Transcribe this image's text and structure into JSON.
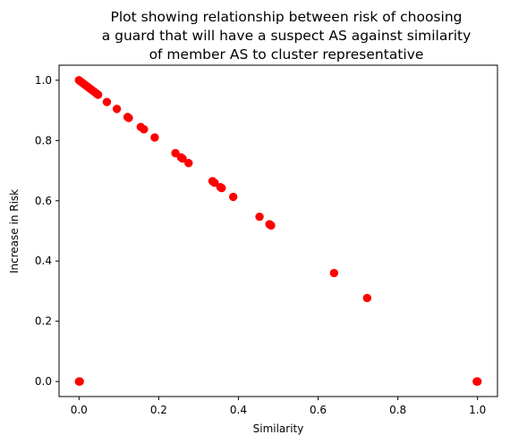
{
  "chart_data": {
    "type": "scatter",
    "title_lines": [
      "Plot showing relationship between risk of choosing",
      "a guard that will have a suspect AS against similarity",
      "of member AS to cluster representative"
    ],
    "xlabel": "Similarity",
    "ylabel": "Increase in Risk",
    "xlim": [
      -0.05,
      1.05
    ],
    "ylim": [
      -0.05,
      1.05
    ],
    "xticks": [
      0.0,
      0.2,
      0.4,
      0.6,
      0.8,
      1.0
    ],
    "xtick_labels": [
      "0.0",
      "0.2",
      "0.4",
      "0.6",
      "0.8",
      "1.0"
    ],
    "yticks": [
      0.0,
      0.2,
      0.4,
      0.6,
      0.8,
      1.0
    ],
    "ytick_labels": [
      "0.0",
      "0.2",
      "0.4",
      "0.6",
      "0.8",
      "1.0"
    ],
    "grid": false,
    "marker_color": "#ff0000",
    "points": [
      {
        "x": 0.0,
        "y": 1.0
      },
      {
        "x": 0.005,
        "y": 0.995
      },
      {
        "x": 0.01,
        "y": 0.99
      },
      {
        "x": 0.015,
        "y": 0.985
      },
      {
        "x": 0.02,
        "y": 0.98
      },
      {
        "x": 0.025,
        "y": 0.975
      },
      {
        "x": 0.03,
        "y": 0.97
      },
      {
        "x": 0.035,
        "y": 0.965
      },
      {
        "x": 0.04,
        "y": 0.96
      },
      {
        "x": 0.045,
        "y": 0.955
      },
      {
        "x": 0.048,
        "y": 0.952
      },
      {
        "x": 0.07,
        "y": 0.928
      },
      {
        "x": 0.095,
        "y": 0.905
      },
      {
        "x": 0.122,
        "y": 0.878
      },
      {
        "x": 0.125,
        "y": 0.875
      },
      {
        "x": 0.155,
        "y": 0.845
      },
      {
        "x": 0.163,
        "y": 0.837
      },
      {
        "x": 0.19,
        "y": 0.81
      },
      {
        "x": 0.242,
        "y": 0.758
      },
      {
        "x": 0.256,
        "y": 0.744
      },
      {
        "x": 0.26,
        "y": 0.74
      },
      {
        "x": 0.275,
        "y": 0.725
      },
      {
        "x": 0.335,
        "y": 0.665
      },
      {
        "x": 0.34,
        "y": 0.66
      },
      {
        "x": 0.355,
        "y": 0.645
      },
      {
        "x": 0.358,
        "y": 0.642
      },
      {
        "x": 0.387,
        "y": 0.613
      },
      {
        "x": 0.453,
        "y": 0.547
      },
      {
        "x": 0.478,
        "y": 0.522
      },
      {
        "x": 0.48,
        "y": 0.52
      },
      {
        "x": 0.482,
        "y": 0.518
      },
      {
        "x": 0.64,
        "y": 0.36
      },
      {
        "x": 0.723,
        "y": 0.277
      },
      {
        "x": 0.0,
        "y": 0.0
      },
      {
        "x": 0.002,
        "y": 0.0
      },
      {
        "x": 0.998,
        "y": 0.0
      },
      {
        "x": 1.0,
        "y": 0.0
      }
    ]
  }
}
